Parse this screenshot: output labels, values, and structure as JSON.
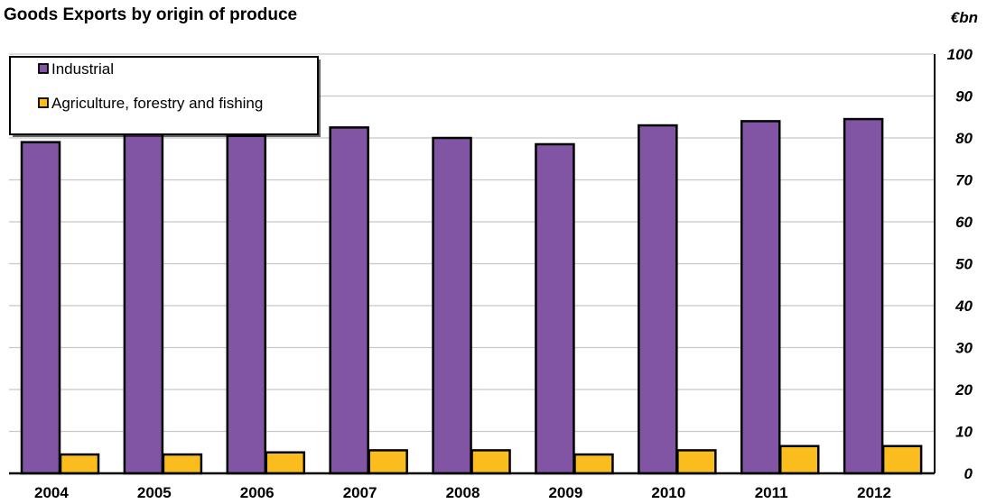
{
  "chart_data": {
    "type": "bar",
    "title": "Goods Exports by origin of produce",
    "unit_label": "€bn",
    "xlabel": "",
    "ylabel": "",
    "categories": [
      "2004",
      "2005",
      "2006",
      "2007",
      "2008",
      "2009",
      "2010",
      "2011",
      "2012"
    ],
    "series": [
      {
        "name": "Industrial",
        "color": "#8155a3",
        "values": [
          79,
          81,
          80.5,
          82.5,
          80,
          78.5,
          83,
          84,
          84.5
        ]
      },
      {
        "name": "Agriculture, forestry and fishing",
        "color": "#fbbd1e",
        "values": [
          4.5,
          4.5,
          5,
          5.5,
          5.5,
          4.5,
          5.5,
          6.5,
          6.5
        ]
      }
    ],
    "ylim": [
      0,
      100
    ],
    "yticks": [
      0,
      10,
      20,
      30,
      40,
      50,
      60,
      70,
      80,
      90,
      100
    ],
    "y_axis_side": "right",
    "grid": true,
    "legend_position": "top-left"
  }
}
